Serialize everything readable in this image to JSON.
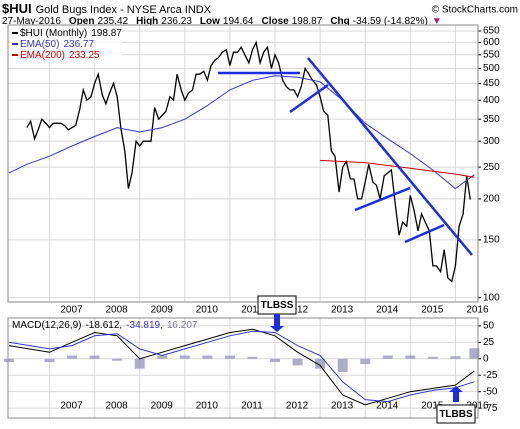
{
  "chart_data": [
    {
      "type": "line",
      "title": "$HUI",
      "subtitle": "Gold Bugs Index - NYSE Arca INDX",
      "source": "© StockCharts.com",
      "date": "27-May-2016",
      "quote": [
        {
          "label": "Open",
          "value": 235.42
        },
        {
          "label": "High",
          "value": 236.23
        },
        {
          "label": "Low",
          "value": 194.64
        },
        {
          "label": "Close",
          "value": 198.87
        },
        {
          "label": "Chg",
          "value": -34.59,
          "value_label": "-34.59 (-14.82%)"
        }
      ],
      "direction": "▼",
      "log_scale": true,
      "grid": true,
      "xlim": [
        2006.08,
        2016.5
      ],
      "xticks": [
        2007,
        2008,
        2009,
        2010,
        2011,
        2012,
        2013,
        2014,
        2015,
        2016
      ],
      "ylim": [
        97,
        678
      ],
      "yticks": [
        100,
        150,
        200,
        250,
        300,
        350,
        400,
        450,
        500,
        550,
        600,
        650
      ],
      "series": [
        {
          "name": "$HUI (Monthly)",
          "legend_value": 198.87,
          "color": "#000000",
          "x": [
            2006.5,
            2006.58,
            2006.67,
            2006.75,
            2006.83,
            2006.92,
            2007,
            2007.08,
            2007.17,
            2007.25,
            2007.33,
            2007.42,
            2007.5,
            2007.58,
            2007.67,
            2007.75,
            2007.83,
            2007.92,
            2008,
            2008.08,
            2008.17,
            2008.25,
            2008.33,
            2008.42,
            2008.5,
            2008.58,
            2008.67,
            2008.75,
            2008.83,
            2008.92,
            2009,
            2009.08,
            2009.17,
            2009.25,
            2009.33,
            2009.42,
            2009.5,
            2009.58,
            2009.67,
            2009.75,
            2009.83,
            2009.92,
            2010,
            2010.08,
            2010.17,
            2010.25,
            2010.33,
            2010.42,
            2010.5,
            2010.58,
            2010.67,
            2010.75,
            2010.83,
            2010.92,
            2011,
            2011.08,
            2011.17,
            2011.25,
            2011.33,
            2011.42,
            2011.5,
            2011.58,
            2011.67,
            2011.75,
            2011.83,
            2011.92,
            2012,
            2012.08,
            2012.17,
            2012.25,
            2012.33,
            2012.42,
            2012.5,
            2012.58,
            2012.67,
            2012.75,
            2012.83,
            2012.92,
            2013,
            2013.08,
            2013.17,
            2013.25,
            2013.33,
            2013.42,
            2013.5,
            2013.58,
            2013.67,
            2013.75,
            2013.83,
            2013.92,
            2014,
            2014.08,
            2014.17,
            2014.25,
            2014.33,
            2014.42,
            2014.5,
            2014.58,
            2014.67,
            2014.75,
            2014.83,
            2014.92,
            2015,
            2015.08,
            2015.17,
            2015.25,
            2015.33,
            2015.42,
            2015.5,
            2015.58,
            2015.67,
            2015.75,
            2015.83,
            2015.92,
            2016,
            2016.08,
            2016.17,
            2016.25,
            2016.33
          ],
          "values": [
            330,
            345,
            305,
            325,
            350,
            340,
            330,
            340,
            340,
            340,
            335,
            325,
            330,
            335,
            375,
            430,
            400,
            410,
            450,
            480,
            415,
            390,
            420,
            450,
            410,
            330,
            280,
            215,
            240,
            300,
            290,
            300,
            300,
            300,
            380,
            350,
            360,
            370,
            410,
            400,
            480,
            430,
            400,
            420,
            430,
            480,
            480,
            490,
            460,
            510,
            530,
            540,
            560,
            570,
            510,
            560,
            560,
            580,
            550,
            520,
            570,
            600,
            520,
            560,
            580,
            500,
            550,
            520,
            460,
            440,
            430,
            430,
            410,
            440,
            500,
            480,
            460,
            445,
            410,
            370,
            360,
            280,
            270,
            210,
            250,
            260,
            230,
            230,
            200,
            200,
            225,
            255,
            225,
            220,
            200,
            235,
            240,
            245,
            190,
            155,
            170,
            165,
            205,
            185,
            160,
            180,
            170,
            160,
            125,
            125,
            120,
            140,
            115,
            112,
            125,
            165,
            180,
            235,
            199
          ]
        },
        {
          "name": "EMA(50)",
          "legend_value": 236.77,
          "color": "#3333cc",
          "x": [
            2006.1,
            2006.5,
            2007,
            2007.5,
            2008,
            2008.5,
            2009,
            2009.5,
            2010,
            2010.5,
            2011,
            2011.5,
            2012,
            2012.5,
            2013,
            2013.5,
            2014,
            2014.5,
            2015,
            2015.5,
            2016,
            2016.42
          ],
          "values": [
            240,
            255,
            270,
            290,
            310,
            330,
            320,
            330,
            350,
            385,
            430,
            460,
            475,
            470,
            455,
            400,
            340,
            305,
            275,
            245,
            215,
            237
          ]
        },
        {
          "name": "EMA(200)",
          "legend_value": 233.25,
          "color": "#cc0000",
          "x": [
            2013,
            2014,
            2015,
            2016,
            2016.42
          ],
          "values": [
            262,
            258,
            248,
            238,
            233
          ]
        }
      ],
      "annotations": [
        "TLBSS"
      ]
    },
    {
      "type": "macd",
      "title": "MACD(12,26,9)",
      "grid": true,
      "legend_values": [
        -18.612,
        -34.819,
        16.207
      ],
      "value_labels": [
        "-18.612,",
        "-34.819,",
        "16.207"
      ],
      "xlim": [
        2006.08,
        2016.5
      ],
      "xticks": [
        2007,
        2008,
        2009,
        2010,
        2011,
        2012,
        2013,
        2014,
        2015,
        2016
      ],
      "ylim": [
        -90,
        62
      ],
      "yticks": [
        50,
        25,
        0,
        -25,
        -50,
        -75
      ],
      "series": [
        {
          "style": "bar",
          "color": "#9999bb",
          "x": [
            2006.1,
            2007,
            2007.5,
            2008,
            2008.5,
            2009,
            2009.5,
            2010,
            2010.5,
            2011,
            2011.5,
            2012,
            2012.5,
            2013,
            2013.5,
            2014,
            2014.5,
            2015,
            2015.5,
            2016,
            2016.42
          ],
          "values": [
            -5,
            -5,
            5,
            5,
            -3,
            -15,
            5,
            5,
            5,
            5,
            3,
            -5,
            -10,
            -15,
            -20,
            -8,
            5,
            5,
            3,
            4,
            16.2
          ]
        },
        {
          "color": "#000000",
          "x": [
            2006.1,
            2007,
            2007.5,
            2008,
            2008.5,
            2009,
            2009.5,
            2010,
            2010.5,
            2011,
            2011.5,
            2012,
            2012.5,
            2013,
            2013.5,
            2014,
            2014.5,
            2015,
            2015.5,
            2016,
            2016.42
          ],
          "values": [
            20,
            10,
            25,
            40,
            35,
            0,
            10,
            20,
            30,
            40,
            45,
            35,
            10,
            -10,
            -55,
            -70,
            -60,
            -50,
            -45,
            -40,
            -18.6
          ]
        },
        {
          "color": "#3333cc",
          "x": [
            2006.1,
            2007,
            2007.5,
            2008,
            2008.5,
            2009,
            2009.5,
            2010,
            2010.5,
            2011,
            2011.5,
            2012,
            2012.5,
            2013,
            2013.5,
            2014,
            2014.5,
            2015,
            2015.5,
            2016,
            2016.42
          ],
          "values": [
            25,
            15,
            20,
            35,
            38,
            15,
            5,
            15,
            25,
            35,
            42,
            40,
            20,
            5,
            -35,
            -62,
            -65,
            -55,
            -48,
            -44,
            -34.8
          ]
        }
      ],
      "annotations": [
        "TLBBS"
      ]
    }
  ]
}
